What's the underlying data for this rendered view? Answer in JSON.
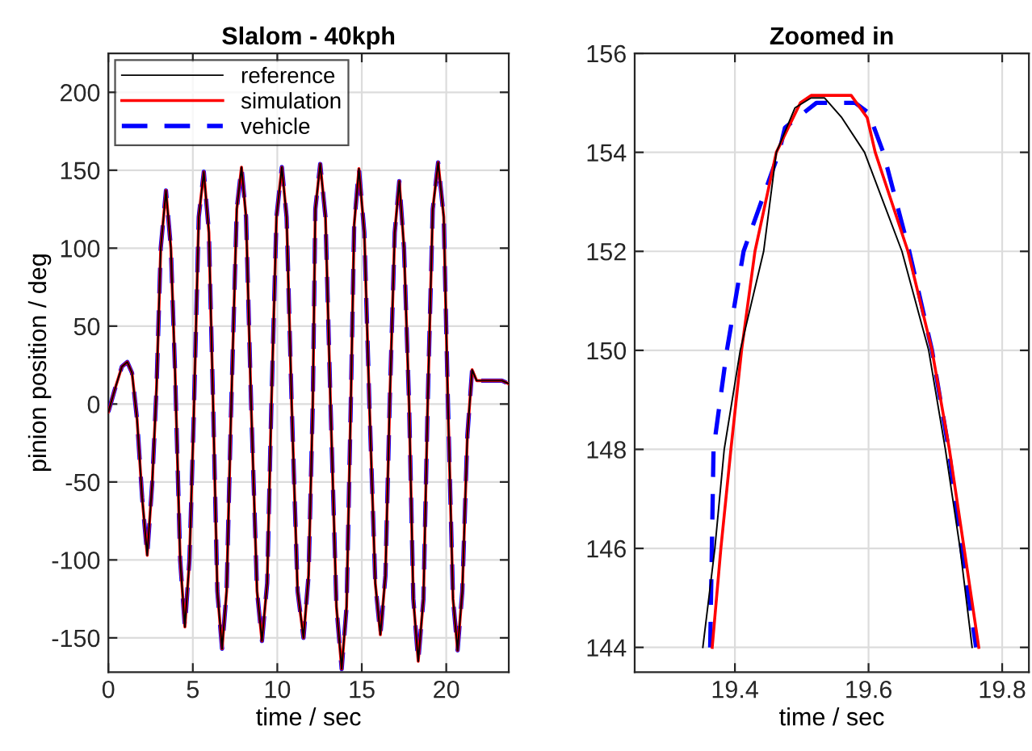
{
  "chart_data": [
    {
      "type": "line",
      "title": "Slalom - 40kph",
      "xlabel": "time / sec",
      "ylabel": "pinion position / deg",
      "xlim": [
        0,
        23.7
      ],
      "ylim": [
        -172,
        225
      ],
      "xticks": [
        0,
        5,
        10,
        15,
        20
      ],
      "yticks": [
        -150,
        -100,
        -50,
        0,
        50,
        100,
        150,
        200
      ],
      "grid": true,
      "legend": "top left",
      "x": [
        0,
        0.4,
        0.8,
        1.12,
        1.4,
        1.7,
        2.0,
        2.3,
        2.6,
        2.85,
        3.1,
        3.41,
        3.7,
        3.95,
        4.25,
        4.53,
        4.8,
        5.05,
        5.35,
        5.65,
        5.95,
        6.2,
        6.45,
        6.73,
        7.0,
        7.25,
        7.6,
        7.88,
        8.15,
        8.45,
        8.8,
        9.09,
        9.4,
        9.65,
        9.95,
        10.27,
        10.55,
        10.85,
        11.2,
        11.55,
        11.85,
        12.1,
        12.25,
        12.54,
        12.85,
        13.15,
        13.5,
        13.81,
        14.1,
        14.35,
        14.55,
        14.83,
        15.15,
        15.45,
        15.8,
        16.1,
        16.4,
        16.65,
        16.95,
        17.22,
        17.5,
        17.8,
        18.05,
        18.34,
        18.65,
        18.9,
        19.2,
        19.52,
        19.85,
        20.1,
        20.4,
        20.67,
        20.95,
        21.25,
        21.53,
        21.8,
        22.2,
        23.3,
        23.7
      ],
      "series": [
        {
          "name": "reference",
          "color": "#000000",
          "line_style": "solid",
          "values": [
            -5,
            10,
            24,
            27,
            20,
            -10,
            -60,
            -97,
            -50,
            10,
            100,
            137,
            100,
            20,
            -100,
            -143,
            -100,
            -10,
            120,
            149,
            110,
            0,
            -120,
            -157,
            -120,
            -10,
            125,
            152,
            120,
            0,
            -120,
            -152,
            -115,
            0,
            120,
            152,
            120,
            0,
            -120,
            -150,
            -110,
            0,
            125,
            154,
            120,
            0,
            -130,
            -170,
            -130,
            0,
            115,
            151,
            110,
            0,
            -115,
            -148,
            -110,
            0,
            110,
            143,
            100,
            0,
            -125,
            -165,
            -125,
            0,
            125,
            155,
            120,
            0,
            -125,
            -158,
            -120,
            -20,
            22,
            15,
            15,
            15,
            13
          ]
        },
        {
          "name": "simulation",
          "color": "#ff0000",
          "line_style": "solid",
          "values": [
            -5,
            10,
            24,
            27,
            20,
            -10,
            -60,
            -97,
            -50,
            10,
            100,
            137,
            100,
            20,
            -100,
            -143,
            -100,
            -10,
            120,
            149,
            110,
            0,
            -120,
            -157,
            -120,
            -10,
            125,
            152,
            120,
            0,
            -120,
            -152,
            -115,
            0,
            120,
            152,
            120,
            0,
            -120,
            -150,
            -110,
            0,
            125,
            154,
            120,
            0,
            -130,
            -170,
            -130,
            0,
            115,
            151,
            110,
            0,
            -115,
            -148,
            -110,
            0,
            110,
            143,
            100,
            0,
            -125,
            -165,
            -125,
            0,
            125,
            155,
            120,
            0,
            -125,
            -158,
            -120,
            -20,
            22,
            15,
            15,
            15,
            13
          ]
        },
        {
          "name": "vehicle",
          "color": "#0000ff",
          "line_style": "dashed",
          "values": [
            -5,
            10,
            24,
            27,
            20,
            -10,
            -60,
            -97,
            -50,
            10,
            100,
            137,
            100,
            20,
            -100,
            -143,
            -100,
            -10,
            120,
            149,
            110,
            0,
            -120,
            -157,
            -120,
            -10,
            125,
            152,
            120,
            0,
            -120,
            -152,
            -115,
            0,
            120,
            152,
            120,
            0,
            -120,
            -150,
            -110,
            0,
            125,
            154,
            120,
            0,
            -130,
            -170,
            -130,
            0,
            115,
            151,
            110,
            0,
            -115,
            -148,
            -110,
            0,
            110,
            143,
            100,
            0,
            -125,
            -165,
            -125,
            0,
            125,
            155,
            120,
            0,
            -125,
            -158,
            -120,
            -20,
            22,
            15,
            15,
            15,
            13
          ]
        }
      ]
    },
    {
      "type": "line",
      "title": "Zoomed in",
      "xlabel": "time / sec",
      "xlim": [
        19.25,
        19.84
      ],
      "ylim": [
        143.5,
        156
      ],
      "xticks": [
        19.4,
        19.6,
        19.8
      ],
      "yticks": [
        144,
        146,
        148,
        150,
        152,
        154,
        156
      ],
      "grid": true,
      "legend": false,
      "series": [
        {
          "color": "#000000",
          "line_style": "solid",
          "x": [
            19.352,
            19.37,
            19.384,
            19.408,
            19.443,
            19.462,
            19.49,
            19.514,
            19.534,
            19.56,
            19.594,
            19.65,
            19.69,
            19.715,
            19.737,
            19.755
          ],
          "values": [
            144,
            146,
            148,
            150,
            152,
            154,
            154.9,
            155.1,
            155.1,
            154.7,
            154,
            152,
            150,
            148,
            146,
            144
          ]
        },
        {
          "color": "#ff0000",
          "line_style": "solid",
          "x": [
            19.366,
            19.379,
            19.394,
            19.41,
            19.43,
            19.462,
            19.498,
            19.514,
            19.574,
            19.598,
            19.61,
            19.659,
            19.695,
            19.721,
            19.743,
            19.765
          ],
          "values": [
            144,
            146,
            148,
            150,
            152,
            154,
            155,
            155.15,
            155.15,
            154.7,
            154,
            152,
            150,
            148,
            146,
            144
          ]
        },
        {
          "color": "#0000ff",
          "line_style": "dashed",
          "x": [
            19.363,
            19.368,
            19.388,
            19.413,
            19.466,
            19.475,
            19.522,
            19.535,
            19.58,
            19.6,
            19.622,
            19.661,
            19.695,
            19.72,
            19.739,
            19.761
          ],
          "values": [
            144,
            148,
            150,
            152,
            154,
            154.5,
            155,
            155,
            155,
            154.8,
            154,
            152,
            150,
            148,
            146,
            144
          ]
        }
      ]
    }
  ]
}
